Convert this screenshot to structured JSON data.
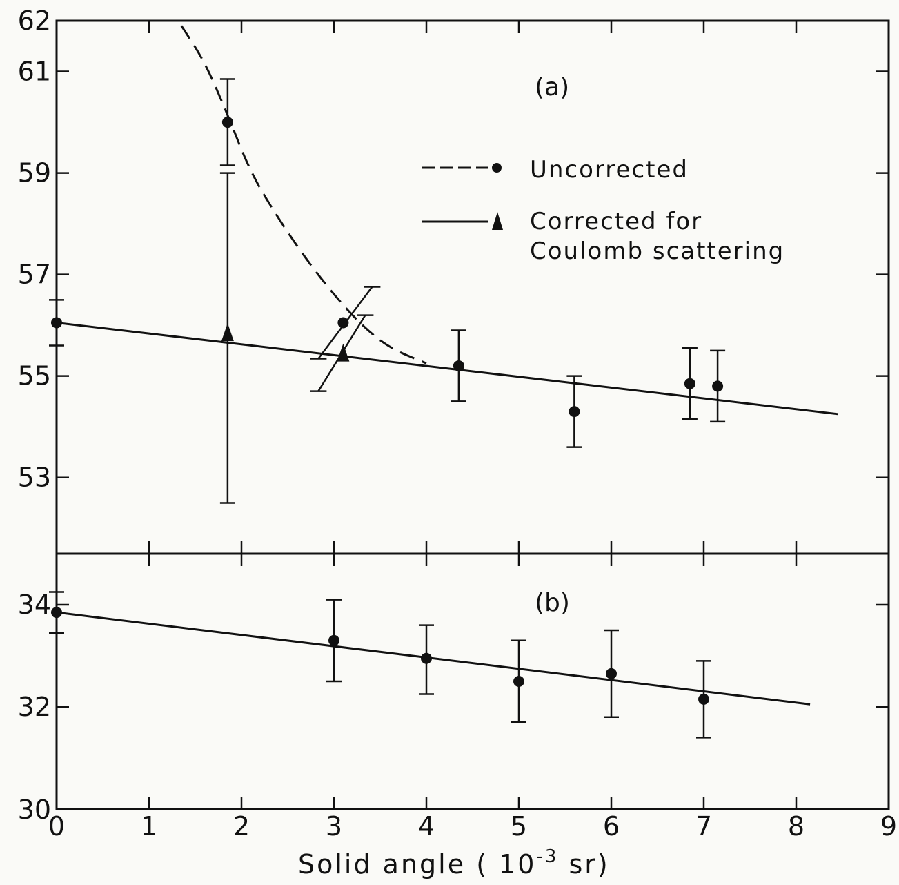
{
  "chart_data": [
    {
      "panel": "(a)",
      "type": "scatter",
      "xlim": [
        0,
        9
      ],
      "ylim": [
        51.5,
        62
      ],
      "y_tick_labels": [
        "53",
        "55",
        "57",
        "59",
        "61",
        "62"
      ],
      "y_tick_values": [
        53,
        55,
        57,
        59,
        61,
        62
      ],
      "grid": false,
      "legend": {
        "placement": "top-right",
        "entries": [
          {
            "line_label": "Uncorrected",
            "style": "dashed",
            "marker": "circle"
          },
          {
            "line_label_1": "Corrected for",
            "line_label_2": "Coulomb scattering",
            "style": "solid",
            "marker": "triangle"
          }
        ]
      },
      "series": [
        {
          "name": "Uncorrected",
          "marker": "circle",
          "points": [
            {
              "x": 0,
              "y": 56.05,
              "err_low": 55.6,
              "err_high": 56.5
            },
            {
              "x": 1.85,
              "y": 60.0,
              "err_low": 59.15,
              "err_high": 60.85
            },
            {
              "x": 3.1,
              "y": 56.05,
              "diag_err": true
            },
            {
              "x": 4.35,
              "y": 55.2,
              "err_low": 54.5,
              "err_high": 55.9
            },
            {
              "x": 5.6,
              "y": 54.3,
              "err_low": 53.6,
              "err_high": 55.0
            },
            {
              "x": 6.85,
              "y": 54.85,
              "err_low": 54.15,
              "err_high": 55.55
            },
            {
              "x": 7.15,
              "y": 54.8,
              "err_low": 54.1,
              "err_high": 55.5
            }
          ],
          "curve": [
            [
              1.35,
              61.9
            ],
            [
              1.6,
              61.2
            ],
            [
              1.85,
              60.15
            ],
            [
              2.1,
              59.0
            ],
            [
              2.4,
              58.1
            ],
            [
              2.7,
              57.3
            ],
            [
              3.0,
              56.6
            ],
            [
              3.3,
              56.0
            ],
            [
              3.6,
              55.55
            ],
            [
              4.0,
              55.25
            ]
          ]
        },
        {
          "name": "Corrected for Coulomb scattering",
          "marker": "triangle",
          "points": [
            {
              "x": 1.85,
              "y": 55.85,
              "err_low": 52.5,
              "err_high": 59.0
            },
            {
              "x": 3.1,
              "y": 55.45,
              "diag_err": true
            }
          ]
        }
      ],
      "fit_line": {
        "x": [
          0,
          8.45
        ],
        "y": [
          56.05,
          54.25
        ]
      }
    },
    {
      "panel": "(b)",
      "type": "scatter",
      "xlim": [
        0,
        9
      ],
      "ylim": [
        30,
        35.0
      ],
      "y_tick_labels": [
        "30",
        "32",
        "34"
      ],
      "y_tick_values": [
        30,
        32,
        34
      ],
      "x_tick_labels": [
        "0",
        "1",
        "2",
        "3",
        "4",
        "5",
        "6",
        "7",
        "8",
        "9"
      ],
      "x_tick_values": [
        0,
        1,
        2,
        3,
        4,
        5,
        6,
        7,
        8,
        9
      ],
      "grid": false,
      "xlabel": "Solid angle (10⁻³ sr)",
      "series": [
        {
          "marker": "circle",
          "points": [
            {
              "x": 0,
              "y": 33.85,
              "err_low": 33.45,
              "err_high": 34.25
            },
            {
              "x": 3.0,
              "y": 33.3,
              "err_low": 32.5,
              "err_high": 34.1
            },
            {
              "x": 4.0,
              "y": 32.95,
              "err_low": 32.25,
              "err_high": 33.6
            },
            {
              "x": 5.0,
              "y": 32.5,
              "err_low": 31.7,
              "err_high": 33.3
            },
            {
              "x": 6.0,
              "y": 32.65,
              "err_low": 31.8,
              "err_high": 33.5
            },
            {
              "x": 7.0,
              "y": 32.15,
              "err_low": 31.4,
              "err_high": 32.9
            }
          ]
        }
      ],
      "fit_line": {
        "x": [
          0,
          8.15
        ],
        "y": [
          33.85,
          32.05
        ]
      }
    }
  ],
  "labels": {
    "panel_a": "(a)",
    "panel_b": "(b)",
    "legend_uncorrected": "Uncorrected",
    "legend_corrected_1": "Corrected for",
    "legend_corrected_2": "Coulomb scattering",
    "xlabel_main": "Solid  angle  ( 10",
    "xlabel_sup": "-3",
    "xlabel_unit": " sr)"
  }
}
